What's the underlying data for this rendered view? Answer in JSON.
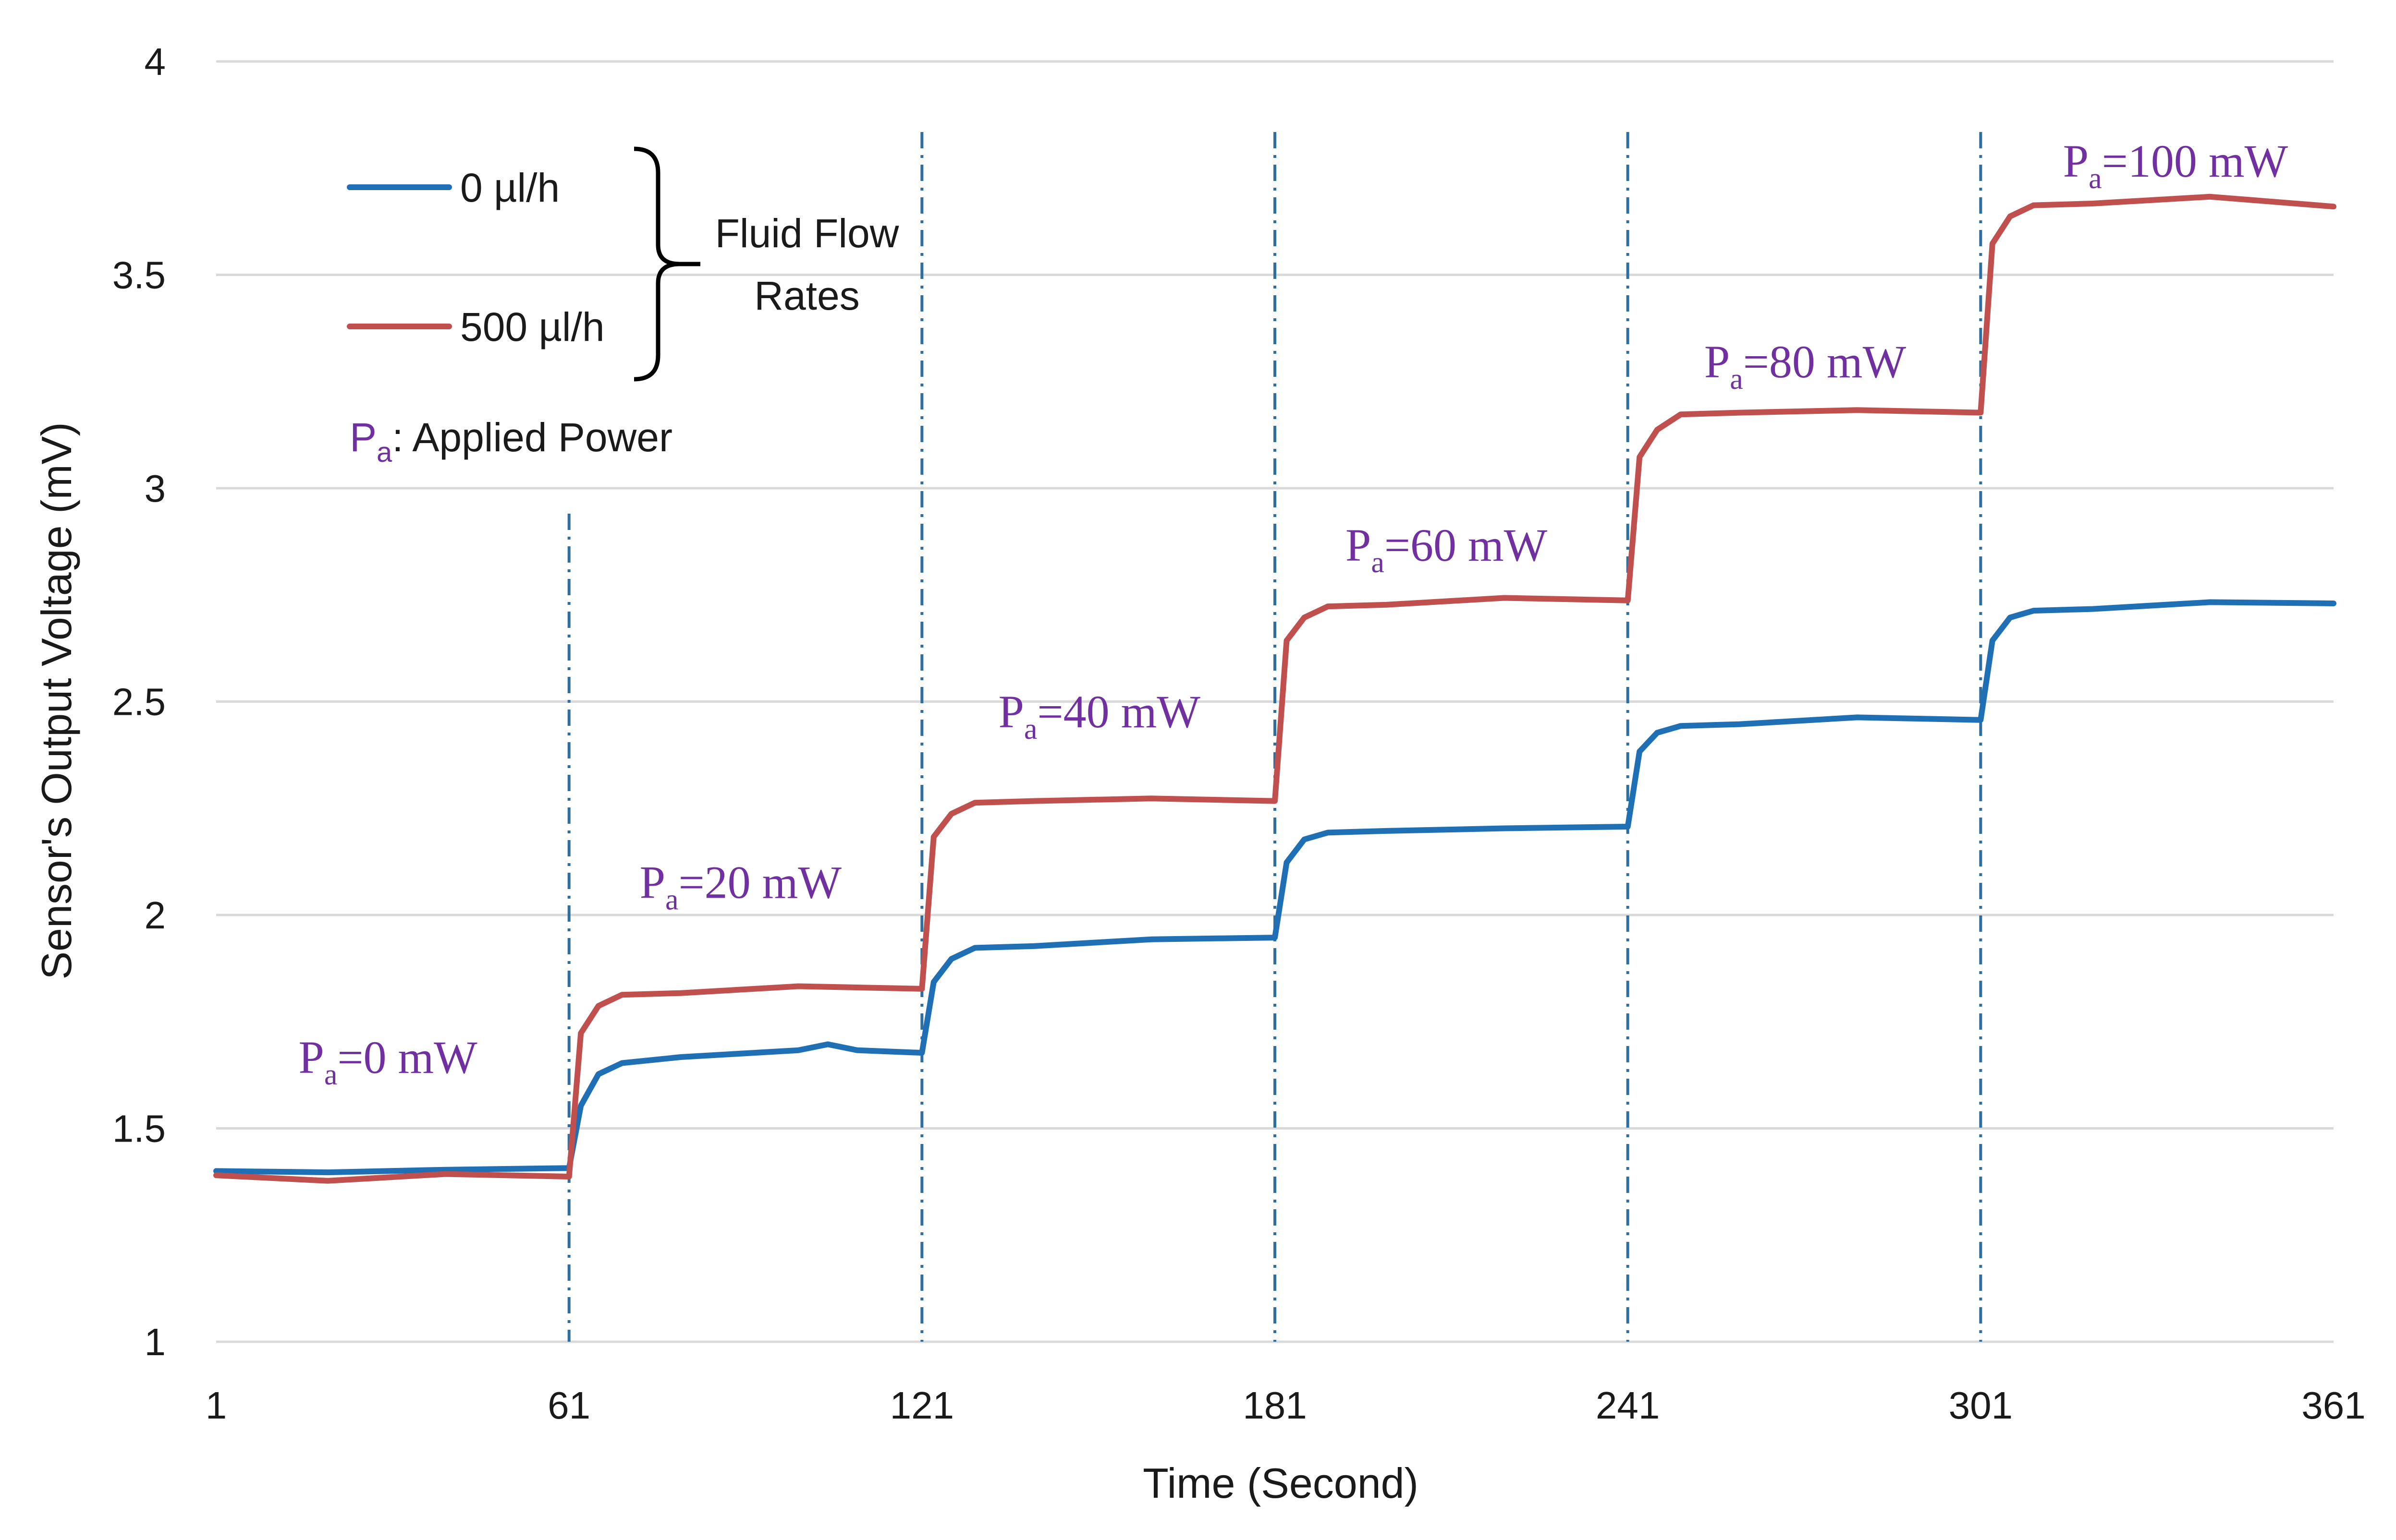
{
  "chart_data": {
    "type": "line",
    "title": "",
    "xlabel": "Time (Second)",
    "ylabel": "Sensor's Output Voltage (mV)",
    "xlim": [
      1,
      361
    ],
    "ylim": [
      1,
      4
    ],
    "x_ticks": [
      "1",
      "61",
      "121",
      "181",
      "241",
      "301",
      "361"
    ],
    "y_ticks": [
      "1",
      "1.5",
      "2",
      "2.5",
      "3",
      "3.5",
      "4"
    ],
    "grid": true,
    "phase_boundaries": [
      61,
      121,
      181,
      241,
      301
    ],
    "legend": {
      "entries": [
        "0 µl/h",
        "500 µl/h"
      ],
      "group_label_line1": "Fluid Flow",
      "group_label_line2": "Rates",
      "note_symbol": "P",
      "note_subscript": "a",
      "note_text": ": Applied Power",
      "placement": "top-left"
    },
    "annotations": [
      {
        "prefix": "P",
        "sub": "a",
        "text": "=0 mW",
        "x": 15,
        "y": 1.63
      },
      {
        "prefix": "P",
        "sub": "a",
        "text": "=20 mW",
        "x": 73,
        "y": 2.04
      },
      {
        "prefix": "P",
        "sub": "a",
        "text": "=40 mW",
        "x": 134,
        "y": 2.44
      },
      {
        "prefix": "P",
        "sub": "a",
        "text": "=60 mW",
        "x": 193,
        "y": 2.83
      },
      {
        "prefix": "P",
        "sub": "a",
        "text": "=80 mW",
        "x": 254,
        "y": 3.26
      },
      {
        "prefix": "P",
        "sub": "a",
        "text": "=100 mW",
        "x": 315,
        "y": 3.73
      }
    ],
    "series": [
      {
        "name": "0 µl/h",
        "color": "#1f6fb4",
        "x": [
          1,
          20,
          40,
          61,
          63,
          66,
          70,
          80,
          100,
          105,
          110,
          121,
          123,
          126,
          130,
          140,
          160,
          181,
          183,
          186,
          190,
          200,
          220,
          241,
          243,
          246,
          250,
          260,
          280,
          301,
          303,
          306,
          310,
          320,
          340,
          361
        ],
        "y": [
          1.4,
          1.4,
          1.4,
          1.41,
          1.55,
          1.63,
          1.65,
          1.67,
          1.68,
          1.7,
          1.68,
          1.68,
          1.84,
          1.9,
          1.92,
          1.93,
          1.94,
          1.95,
          2.12,
          2.18,
          2.19,
          2.2,
          2.2,
          2.21,
          2.38,
          2.43,
          2.44,
          2.45,
          2.46,
          2.46,
          2.64,
          2.7,
          2.71,
          2.72,
          2.73,
          2.73
        ]
      },
      {
        "name": "500 µl/h",
        "color": "#c0504d",
        "x": [
          1,
          20,
          40,
          61,
          63,
          66,
          70,
          80,
          100,
          121,
          123,
          126,
          130,
          140,
          160,
          181,
          183,
          186,
          190,
          200,
          220,
          241,
          243,
          246,
          250,
          260,
          280,
          301,
          303,
          306,
          310,
          320,
          340,
          361
        ],
        "y": [
          1.39,
          1.38,
          1.39,
          1.39,
          1.72,
          1.79,
          1.81,
          1.82,
          1.83,
          1.83,
          2.18,
          2.24,
          2.26,
          2.27,
          2.27,
          2.27,
          2.64,
          2.7,
          2.72,
          2.73,
          2.74,
          2.74,
          3.07,
          3.14,
          3.17,
          3.18,
          3.18,
          3.18,
          3.57,
          3.64,
          3.66,
          3.67,
          3.68,
          3.66
        ]
      }
    ]
  }
}
